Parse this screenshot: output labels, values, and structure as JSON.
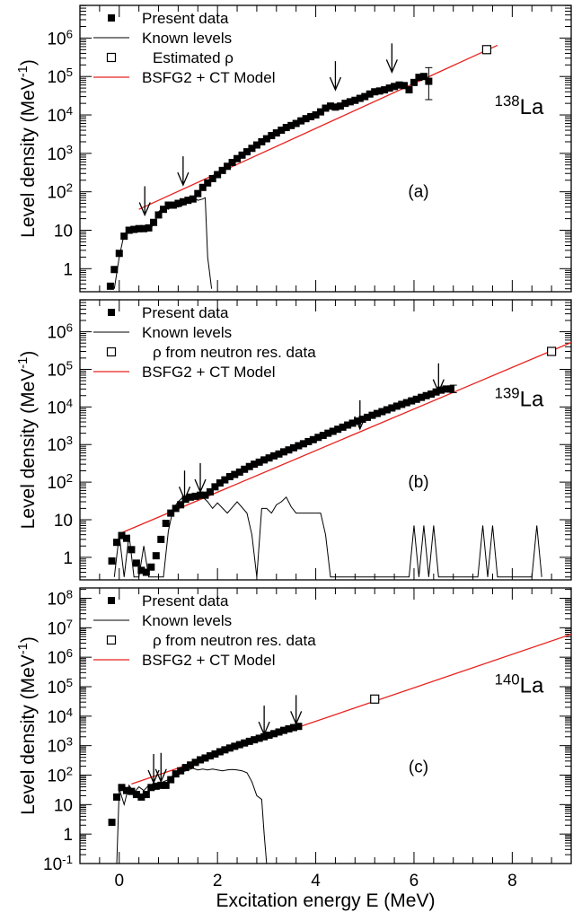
{
  "chart_data": {
    "type": "scatter",
    "xlabel": "Excitation energy E (MeV)",
    "xlim": [
      -0.8,
      9.2
    ],
    "x_ticks": [
      0,
      2,
      4,
      6,
      8
    ],
    "panels": [
      {
        "panel_label": "(a)",
        "nucleus_mass": "138",
        "nucleus_symbol": "La",
        "ylabel": "Level density (MeV",
        "ylabel_sup": "-1",
        "ylabel_close": ")",
        "ylim_log10": [
          -0.6,
          6.85
        ],
        "y_ticks": [
          {
            "exp": 0,
            "text": "1"
          },
          {
            "exp": 1,
            "text": "10"
          },
          {
            "exp": 2,
            "text": "10",
            "sup": "2"
          },
          {
            "exp": 3,
            "text": "10",
            "sup": "3"
          },
          {
            "exp": 4,
            "text": "10",
            "sup": "4"
          },
          {
            "exp": 5,
            "text": "10",
            "sup": "5"
          },
          {
            "exp": 6,
            "text": "10",
            "sup": "6"
          }
        ],
        "legend": [
          {
            "kind": "marker-filled",
            "label": "Present data"
          },
          {
            "kind": "line-black",
            "label": "Known levels"
          },
          {
            "kind": "marker-open",
            "label": "Estimated ρ"
          },
          {
            "kind": "line-red",
            "label": "BSFG2 + CT Model"
          }
        ],
        "present_data": {
          "x": [
            -0.18,
            -0.1,
            0.0,
            0.1,
            0.2,
            0.3,
            0.4,
            0.5,
            0.6,
            0.7,
            0.8,
            0.9,
            1.0,
            1.1,
            1.2,
            1.3,
            1.4,
            1.5,
            1.6,
            1.7,
            1.8,
            1.9,
            2.0,
            2.1,
            2.2,
            2.3,
            2.4,
            2.5,
            2.6,
            2.7,
            2.8,
            2.9,
            3.0,
            3.1,
            3.2,
            3.3,
            3.4,
            3.5,
            3.6,
            3.7,
            3.8,
            3.9,
            4.0,
            4.1,
            4.2,
            4.3,
            4.4,
            4.5,
            4.6,
            4.7,
            4.8,
            4.9,
            5.0,
            5.1,
            5.2,
            5.3,
            5.4,
            5.5,
            5.6,
            5.7,
            5.8,
            5.9,
            6.0,
            6.1,
            6.2,
            6.3
          ],
          "y": [
            0.35,
            0.95,
            2.5,
            7,
            10,
            10.5,
            11,
            11,
            11.5,
            16,
            25,
            35,
            45,
            45,
            50,
            55,
            60,
            65,
            90,
            130,
            170,
            220,
            280,
            360,
            460,
            580,
            730,
            900,
            1100,
            1350,
            1650,
            2000,
            2400,
            2900,
            3400,
            4000,
            4700,
            5300,
            6000,
            7000,
            8000,
            9000,
            10000,
            12000,
            15000,
            17000,
            16000,
            17000,
            20000,
            22000,
            24000,
            27000,
            30000,
            35000,
            40000,
            42000,
            45000,
            50000,
            55000,
            60000,
            58000,
            45000,
            70000,
            95000,
            100000,
            75000
          ]
        },
        "known_levels": {
          "x": [
            -0.1,
            0.0,
            0.1,
            0.2,
            0.3,
            0.4,
            0.5,
            0.6,
            0.7,
            0.8,
            0.9,
            1.0,
            1.1,
            1.2,
            1.3,
            1.4,
            1.5,
            1.6,
            1.7,
            1.75,
            1.8,
            1.88
          ],
          "y": [
            0.3,
            2,
            8,
            10,
            10,
            9,
            11,
            10,
            14,
            30,
            40,
            35,
            45,
            40,
            45,
            60,
            75,
            60,
            65,
            70,
            2,
            0.3
          ]
        },
        "estimated_rho": [
          {
            "x": 7.48,
            "y": 500000
          }
        ],
        "model_line": {
          "x": [
            0.4,
            7.7
          ],
          "y": [
            35,
            650000
          ]
        },
        "arrows": [
          {
            "x": 0.52,
            "y": 25
          },
          {
            "x": 1.3,
            "y": 150
          },
          {
            "x": 5.55,
            "y": 130000
          },
          {
            "x": 4.4,
            "y": 45000
          }
        ],
        "error_bar": {
          "x": 6.3,
          "y_low": 25000,
          "y_high": 170000
        }
      },
      {
        "panel_label": "(b)",
        "nucleus_mass": "139",
        "nucleus_symbol": "La",
        "ylabel": "Level density (MeV",
        "ylabel_sup": "-1",
        "ylabel_close": ")",
        "ylim_log10": [
          -0.6,
          6.85
        ],
        "y_ticks": [
          {
            "exp": 0,
            "text": "1"
          },
          {
            "exp": 1,
            "text": "10"
          },
          {
            "exp": 2,
            "text": "10",
            "sup": "2"
          },
          {
            "exp": 3,
            "text": "10",
            "sup": "3"
          },
          {
            "exp": 4,
            "text": "10",
            "sup": "4"
          },
          {
            "exp": 5,
            "text": "10",
            "sup": "5"
          },
          {
            "exp": 6,
            "text": "10",
            "sup": "6"
          }
        ],
        "legend": [
          {
            "kind": "marker-filled",
            "label": "Present data"
          },
          {
            "kind": "line-black",
            "label": "Known levels"
          },
          {
            "kind": "marker-open",
            "label": "ρ from neutron res. data"
          },
          {
            "kind": "line-red",
            "label": "BSFG2 + CT Model"
          }
        ],
        "present_data": {
          "x": [
            -0.15,
            -0.05,
            0.05,
            0.15,
            0.25,
            0.35,
            0.45,
            0.55,
            0.65,
            0.75,
            0.85,
            0.95,
            1.05,
            1.15,
            1.25,
            1.35,
            1.45,
            1.55,
            1.65,
            1.75,
            1.85,
            1.95,
            2.05,
            2.15,
            2.25,
            2.35,
            2.45,
            2.55,
            2.65,
            2.75,
            2.85,
            2.95,
            3.05,
            3.15,
            3.25,
            3.35,
            3.45,
            3.55,
            3.65,
            3.75,
            3.85,
            3.95,
            4.05,
            4.15,
            4.25,
            4.35,
            4.45,
            4.55,
            4.65,
            4.75,
            4.85,
            4.95,
            5.05,
            5.15,
            5.25,
            5.35,
            5.45,
            5.55,
            5.65,
            5.75,
            5.85,
            5.95,
            6.05,
            6.15,
            6.25,
            6.35,
            6.45,
            6.55,
            6.65,
            6.75
          ],
          "y": [
            0.8,
            2.5,
            3.8,
            3.2,
            1.6,
            0.7,
            0.45,
            0.4,
            0.55,
            1.1,
            3,
            8,
            15,
            20,
            25,
            35,
            40,
            42,
            45,
            45,
            55,
            75,
            95,
            115,
            140,
            160,
            185,
            220,
            260,
            300,
            340,
            390,
            440,
            500,
            560,
            640,
            720,
            820,
            930,
            1050,
            1200,
            1350,
            1550,
            1750,
            2000,
            2250,
            2550,
            2900,
            3300,
            3700,
            4200,
            4700,
            5300,
            6000,
            6700,
            7500,
            8400,
            9400,
            10500,
            11700,
            13000,
            14500,
            16000,
            18000,
            20000,
            22000,
            25000,
            28000,
            30000,
            30000
          ]
        },
        "known_levels": {
          "x": [
            -0.1,
            0.0,
            0.1,
            0.2,
            0.3,
            0.4,
            0.5,
            0.6,
            0.7,
            0.8,
            0.9,
            1.0,
            1.1,
            1.2,
            1.3,
            1.4,
            1.5,
            1.6,
            1.7,
            1.8,
            1.9,
            2.0,
            2.2,
            2.4,
            2.6,
            2.7,
            2.8,
            2.9,
            3.0,
            3.1,
            3.2,
            3.3,
            3.4,
            3.5,
            3.6,
            3.7,
            3.8,
            3.9,
            4.0,
            4.1,
            4.2,
            4.3,
            4.4,
            4.5,
            5.9,
            6.0,
            6.1,
            6.2,
            6.3,
            6.4,
            6.5,
            6.6,
            6.7,
            7.3,
            7.4,
            7.5,
            7.6,
            7.7,
            8.4,
            8.5,
            8.6
          ],
          "y": [
            0.3,
            4,
            0.3,
            4,
            0.3,
            0.3,
            2,
            0.3,
            0.3,
            0.3,
            0.3,
            5,
            20,
            30,
            40,
            45,
            40,
            35,
            40,
            30,
            20,
            28,
            15,
            30,
            15,
            4,
            0.3,
            20,
            20,
            15,
            25,
            30,
            40,
            22,
            15,
            15,
            15,
            15,
            15,
            15,
            4,
            0.3,
            0.3,
            0.3,
            0.3,
            7,
            0.3,
            7,
            0.3,
            7,
            0.3,
            0.3,
            0.3,
            0.3,
            7,
            0.3,
            7,
            0.3,
            0.3,
            7,
            0.3
          ]
        },
        "estimated_rho": [
          {
            "x": 8.8,
            "y": 300000
          }
        ],
        "model_line": {
          "x": [
            0.05,
            9.2
          ],
          "y": [
            4.5,
            520000
          ]
        },
        "arrows": [
          {
            "x": 1.33,
            "y": 35
          },
          {
            "x": 1.65,
            "y": 55
          },
          {
            "x": 4.9,
            "y": 2600
          },
          {
            "x": 6.5,
            "y": 25000
          }
        ],
        "error_bar": {
          "x": 6.8,
          "y_low": 24000,
          "y_high": 38000
        }
      },
      {
        "panel_label": "(c)",
        "nucleus_mass": "140",
        "nucleus_symbol": "La",
        "ylabel": "Level density (MeV",
        "ylabel_sup": "-1",
        "ylabel_close": ")",
        "ylim_log10": [
          -1.0,
          8.35
        ],
        "y_ticks": [
          {
            "exp": -1,
            "text": "10",
            "sup": "-1"
          },
          {
            "exp": 0,
            "text": "1"
          },
          {
            "exp": 1,
            "text": "10"
          },
          {
            "exp": 2,
            "text": "10",
            "sup": "2"
          },
          {
            "exp": 3,
            "text": "10",
            "sup": "3"
          },
          {
            "exp": 4,
            "text": "10",
            "sup": "4"
          },
          {
            "exp": 5,
            "text": "10",
            "sup": "5"
          },
          {
            "exp": 6,
            "text": "10",
            "sup": "6"
          },
          {
            "exp": 7,
            "text": "10",
            "sup": "7"
          },
          {
            "exp": 8,
            "text": "10",
            "sup": "8"
          }
        ],
        "legend": [
          {
            "kind": "marker-filled",
            "label": "Present data"
          },
          {
            "kind": "line-black",
            "label": "Known levels"
          },
          {
            "kind": "marker-open",
            "label": "ρ from neutron res. data"
          },
          {
            "kind": "line-red",
            "label": "BSFG2 + CT Model"
          }
        ],
        "present_data": {
          "x": [
            -0.15,
            -0.05,
            0.05,
            0.15,
            0.25,
            0.35,
            0.45,
            0.55,
            0.65,
            0.75,
            0.85,
            0.95,
            1.05,
            1.15,
            1.25,
            1.35,
            1.45,
            1.55,
            1.65,
            1.75,
            1.85,
            1.95,
            2.05,
            2.15,
            2.25,
            2.35,
            2.45,
            2.55,
            2.65,
            2.75,
            2.85,
            2.95,
            3.05,
            3.15,
            3.25,
            3.35,
            3.45,
            3.55,
            3.65
          ],
          "y": [
            2.5,
            18,
            38,
            30,
            28,
            22,
            18,
            22,
            38,
            42,
            45,
            45,
            70,
            110,
            140,
            180,
            220,
            270,
            330,
            380,
            450,
            520,
            620,
            720,
            830,
            950,
            1080,
            1230,
            1400,
            1580,
            1780,
            2000,
            2250,
            2550,
            2900,
            3300,
            3700,
            4100,
            4500
          ]
        },
        "known_levels": {
          "x": [
            -0.05,
            0.0,
            0.1,
            0.2,
            0.3,
            0.4,
            0.5,
            0.6,
            0.7,
            0.8,
            0.9,
            1.0,
            1.1,
            1.2,
            1.3,
            1.4,
            1.5,
            1.6,
            1.7,
            1.8,
            1.9,
            2.0,
            2.1,
            2.2,
            2.3,
            2.4,
            2.5,
            2.6,
            2.7,
            2.8,
            2.9,
            2.95,
            3.0
          ],
          "y": [
            0.1,
            35,
            10,
            45,
            25,
            40,
            30,
            45,
            50,
            45,
            60,
            70,
            100,
            100,
            130,
            150,
            170,
            150,
            160,
            150,
            160,
            150,
            140,
            150,
            155,
            150,
            140,
            120,
            60,
            20,
            15,
            1,
            0.1
          ]
        },
        "estimated_rho": [
          {
            "x": 5.2,
            "y": 38000
          }
        ],
        "model_line": {
          "x": [
            0.25,
            9.2
          ],
          "y": [
            50,
            6000000
          ]
        },
        "arrows": [
          {
            "x": 0.7,
            "y": 55
          },
          {
            "x": 0.85,
            "y": 60
          },
          {
            "x": 2.95,
            "y": 2400
          },
          {
            "x": 3.6,
            "y": 5500
          }
        ],
        "error_bar": null
      }
    ]
  }
}
